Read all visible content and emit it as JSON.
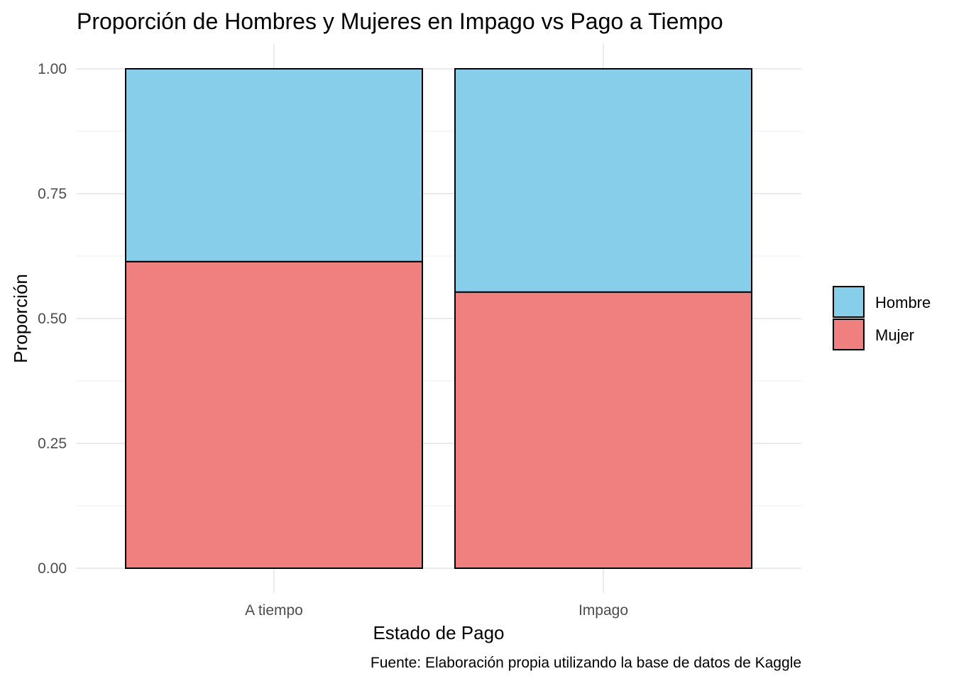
{
  "chart_data": {
    "type": "bar",
    "stacked": true,
    "title": "Proporción de Hombres y Mujeres en Impago vs Pago a Tiempo",
    "xlabel": "Estado de Pago",
    "ylabel": "Proporción",
    "caption": "Fuente: Elaboración propia utilizando la base de datos de Kaggle",
    "categories": [
      "A tiempo",
      "Impago"
    ],
    "series": [
      {
        "name": "Mujer",
        "values": [
          0.614,
          0.553
        ],
        "color": "#F08080"
      },
      {
        "name": "Hombre",
        "values": [
          0.386,
          0.447
        ],
        "color": "#87CEEB"
      }
    ],
    "legend_order": [
      "Hombre",
      "Mujer"
    ],
    "ylim": [
      0,
      1
    ],
    "yticks": [
      0.0,
      0.25,
      0.5,
      0.75,
      1.0
    ],
    "ytick_labels": [
      "0.00",
      "0.25",
      "0.50",
      "0.75",
      "1.00"
    ],
    "grid": true,
    "legend_position": "right"
  }
}
